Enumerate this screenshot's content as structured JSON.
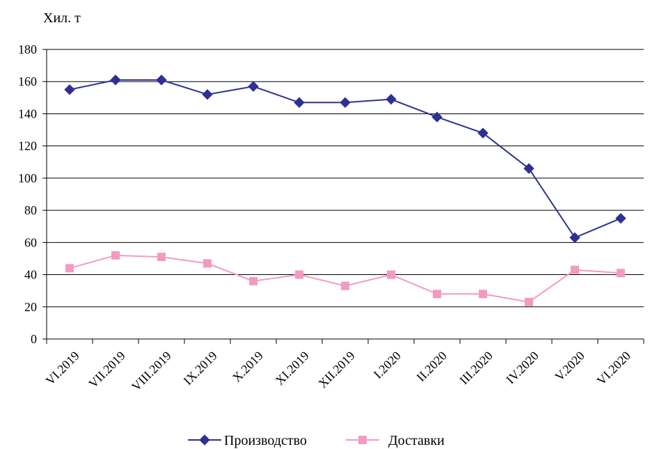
{
  "chart_data": {
    "type": "line",
    "ylabel": "Хил. т",
    "ylim": [
      0,
      180
    ],
    "yticks": [
      0,
      20,
      40,
      60,
      80,
      100,
      120,
      140,
      160,
      180
    ],
    "grid": true,
    "legend_position": "bottom",
    "categories": [
      "VI.2019",
      "VII.2019",
      "VIII.2019",
      "IX.2019",
      "X.2019",
      "XI.2019",
      "XII.2019",
      "I.2020",
      "II.2020",
      "III.2020",
      "IV.2020",
      "V.2020",
      "VI.2020"
    ],
    "series": [
      {
        "name": "Производство",
        "color": "#2e3192",
        "marker": "diamond",
        "values": [
          155,
          161,
          161,
          152,
          157,
          147,
          147,
          149,
          138,
          128,
          106,
          63,
          75
        ]
      },
      {
        "name": "Доставки",
        "color": "#f49ac1",
        "marker": "square",
        "values": [
          44,
          52,
          51,
          47,
          36,
          40,
          33,
          40,
          28,
          28,
          23,
          43,
          41
        ]
      }
    ]
  }
}
